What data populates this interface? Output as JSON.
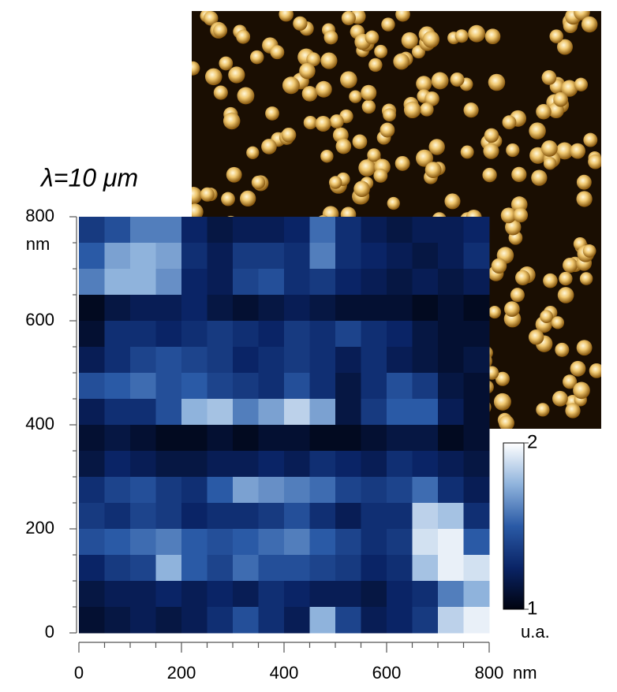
{
  "chart_data": {
    "type": "heatmap",
    "title": "λ=10 μm",
    "x_unit": "nm",
    "y_unit": "nm",
    "colorbar_label": "u.a.",
    "xlim": [
      0,
      800
    ],
    "xticks": [
      0,
      200,
      400,
      600,
      800
    ],
    "ylim": [
      0,
      800
    ],
    "yticks": [
      0,
      200,
      400,
      600,
      800
    ],
    "zlim": [
      1,
      2
    ],
    "zticks": [
      1,
      2
    ],
    "colorscale": [
      "#00030f",
      "#0a2466",
      "#2a5aa6",
      "#8fb3dc",
      "#ffffff"
    ],
    "z": [
      [
        1.35,
        1.45,
        1.6,
        1.6,
        1.25,
        1.15,
        1.2,
        1.2,
        1.25,
        1.55,
        1.3,
        1.2,
        1.15,
        1.2,
        1.2,
        1.25
      ],
      [
        1.5,
        1.7,
        1.75,
        1.7,
        1.3,
        1.2,
        1.35,
        1.35,
        1.3,
        1.6,
        1.3,
        1.25,
        1.2,
        1.15,
        1.2,
        1.3
      ],
      [
        1.6,
        1.75,
        1.75,
        1.65,
        1.25,
        1.2,
        1.4,
        1.45,
        1.3,
        1.35,
        1.25,
        1.2,
        1.15,
        1.2,
        1.15,
        1.2
      ],
      [
        1.05,
        1.15,
        1.2,
        1.2,
        1.25,
        1.15,
        1.1,
        1.15,
        1.2,
        1.15,
        1.1,
        1.1,
        1.1,
        1.05,
        1.1,
        1.05
      ],
      [
        1.1,
        1.3,
        1.3,
        1.25,
        1.3,
        1.35,
        1.3,
        1.25,
        1.35,
        1.3,
        1.4,
        1.3,
        1.25,
        1.15,
        1.1,
        1.1
      ],
      [
        1.2,
        1.3,
        1.4,
        1.45,
        1.4,
        1.35,
        1.25,
        1.3,
        1.35,
        1.3,
        1.2,
        1.3,
        1.2,
        1.15,
        1.1,
        1.15
      ],
      [
        1.45,
        1.5,
        1.55,
        1.45,
        1.5,
        1.4,
        1.35,
        1.3,
        1.45,
        1.3,
        1.15,
        1.3,
        1.45,
        1.35,
        1.15,
        1.1
      ],
      [
        1.2,
        1.3,
        1.3,
        1.45,
        1.75,
        1.8,
        1.6,
        1.7,
        1.85,
        1.7,
        1.15,
        1.35,
        1.5,
        1.5,
        1.2,
        1.1
      ],
      [
        1.1,
        1.15,
        1.1,
        1.05,
        1.05,
        1.1,
        1.05,
        1.1,
        1.1,
        1.05,
        1.05,
        1.1,
        1.15,
        1.15,
        1.05,
        1.1
      ],
      [
        1.15,
        1.25,
        1.2,
        1.15,
        1.15,
        1.2,
        1.2,
        1.25,
        1.2,
        1.3,
        1.25,
        1.2,
        1.3,
        1.25,
        1.2,
        1.15
      ],
      [
        1.3,
        1.4,
        1.45,
        1.35,
        1.3,
        1.5,
        1.7,
        1.65,
        1.6,
        1.55,
        1.4,
        1.35,
        1.4,
        1.55,
        1.3,
        1.2
      ],
      [
        1.35,
        1.3,
        1.4,
        1.35,
        1.25,
        1.3,
        1.3,
        1.35,
        1.45,
        1.3,
        1.2,
        1.3,
        1.3,
        1.85,
        1.8,
        1.3
      ],
      [
        1.45,
        1.5,
        1.55,
        1.6,
        1.5,
        1.45,
        1.5,
        1.55,
        1.6,
        1.5,
        1.4,
        1.3,
        1.35,
        1.9,
        1.95,
        1.5
      ],
      [
        1.25,
        1.35,
        1.4,
        1.75,
        1.5,
        1.4,
        1.55,
        1.45,
        1.45,
        1.4,
        1.35,
        1.25,
        1.3,
        1.8,
        1.95,
        1.9
      ],
      [
        1.15,
        1.2,
        1.2,
        1.25,
        1.2,
        1.25,
        1.2,
        1.3,
        1.25,
        1.2,
        1.2,
        1.15,
        1.25,
        1.3,
        1.6,
        1.75
      ],
      [
        1.1,
        1.15,
        1.2,
        1.15,
        1.2,
        1.3,
        1.45,
        1.3,
        1.2,
        1.75,
        1.4,
        1.2,
        1.25,
        1.35,
        1.85,
        1.95
      ]
    ]
  }
}
